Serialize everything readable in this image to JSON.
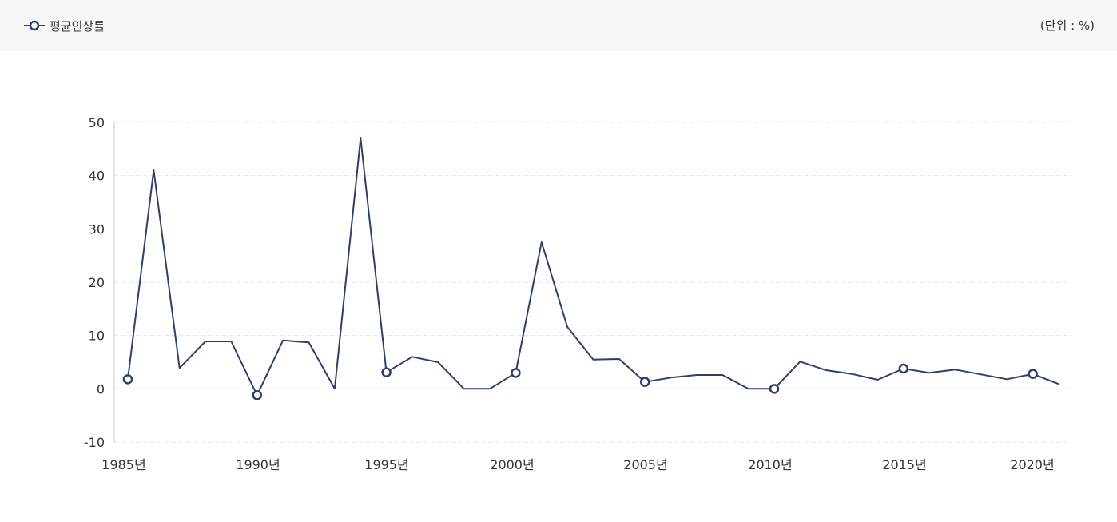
{
  "header": {
    "legend_label": "평균인상률",
    "unit_label": "(단위 : %)"
  },
  "colors": {
    "series": "#333d6b",
    "grid": "#e6e6e6",
    "axis": "#cccccc",
    "header_bg": "#f7f7f7"
  },
  "chart_data": {
    "type": "line",
    "title": "",
    "xlabel": "",
    "ylabel": "",
    "ylim": [
      -10,
      50
    ],
    "yticks": [
      "-10",
      "0",
      "10",
      "20",
      "30",
      "40",
      "50"
    ],
    "xticks": [
      "1985년",
      "1990년",
      "1995년",
      "2000년",
      "2005년",
      "2010년",
      "2015년",
      "2020년"
    ],
    "grid": true,
    "legend": "top-left",
    "series": [
      {
        "name": "평균인상률",
        "x": [
          1985,
          1986,
          1987,
          1988,
          1989,
          1990,
          1991,
          1992,
          1993,
          1994,
          1995,
          1996,
          1997,
          1998,
          1999,
          2000,
          2001,
          2002,
          2003,
          2004,
          2005,
          2006,
          2007,
          2008,
          2009,
          2010,
          2011,
          2012,
          2013,
          2014,
          2015,
          2016,
          2017,
          2018,
          2019,
          2020,
          2021
        ],
        "values": [
          1.8,
          41,
          3.9,
          8.9,
          8.9,
          -1.2,
          9.1,
          8.7,
          0,
          47,
          3.1,
          6,
          5,
          0,
          0,
          3,
          27.5,
          11.6,
          5.5,
          5.6,
          1.3,
          2.1,
          2.6,
          2.6,
          0,
          0,
          5.1,
          3.5,
          2.8,
          1.7,
          3.8,
          3,
          3.6,
          2.7,
          1.8,
          2.8,
          0.9
        ],
        "markers_at": [
          1985,
          1990,
          1995,
          2000,
          2005,
          2010,
          2015,
          2020
        ]
      }
    ]
  }
}
